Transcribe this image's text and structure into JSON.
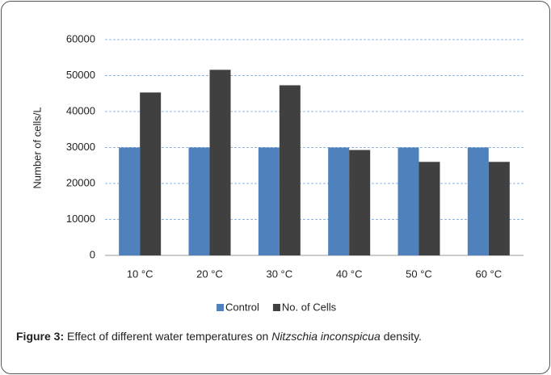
{
  "chart_data": {
    "type": "bar",
    "categories": [
      "10 °C",
      "20 °C",
      "30 °C",
      "40 °C",
      "50 °C",
      "60 °C"
    ],
    "series": [
      {
        "name": "Control",
        "color": "#4f81bd",
        "values": [
          30000,
          30000,
          30000,
          30000,
          30000,
          30000
        ]
      },
      {
        "name": "No. of Cells",
        "color": "#404040",
        "values": [
          45300,
          51600,
          47300,
          29300,
          26000,
          26000
        ]
      }
    ],
    "y_label": "Number of cells/L",
    "ylim": [
      0,
      60000
    ],
    "yticks": [
      0,
      10000,
      20000,
      30000,
      40000,
      50000,
      60000
    ],
    "grid": true,
    "legend": "bottom"
  },
  "caption": {
    "label": "Figure 3:",
    "text": "Effect of different water temperatures on",
    "species": "Nitzschia inconspicua",
    "end": "density."
  }
}
